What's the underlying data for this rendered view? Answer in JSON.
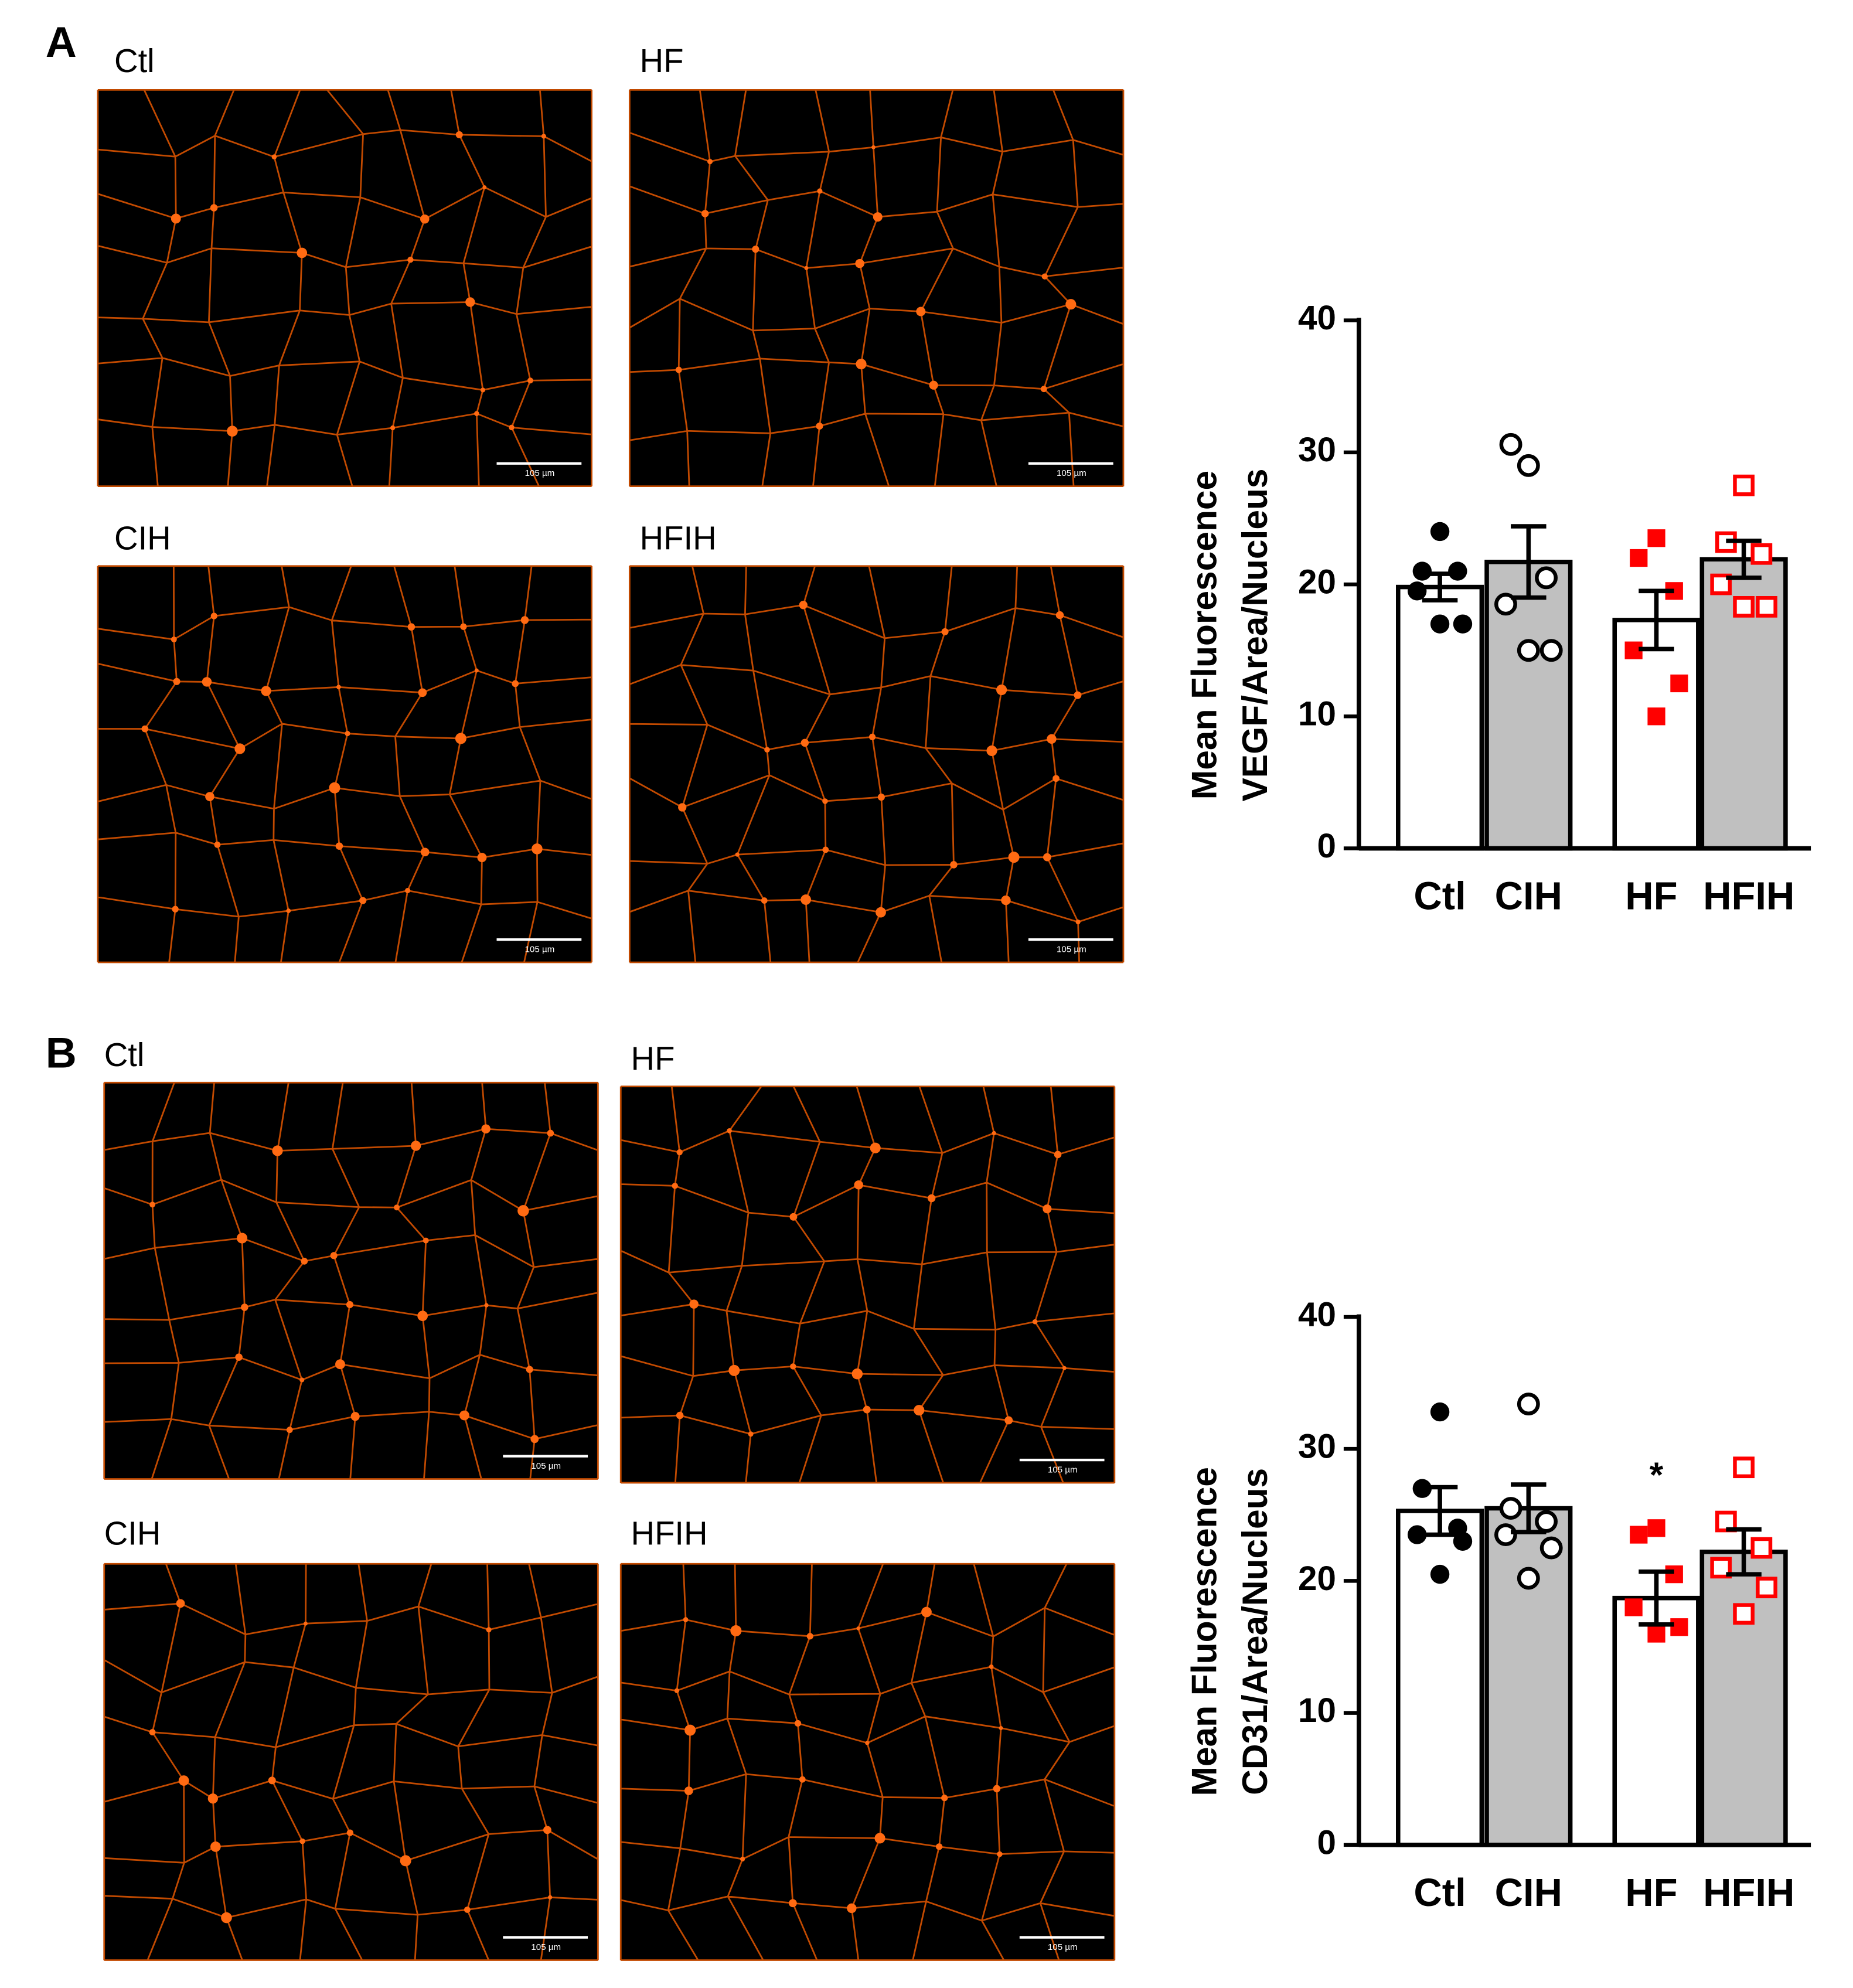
{
  "panels": [
    {
      "label": "A",
      "images": [
        {
          "label": "Ctl",
          "scale_bar": "105 µm"
        },
        {
          "label": "HF",
          "scale_bar": "105 µm"
        },
        {
          "label": "CIH",
          "scale_bar": "105 µm"
        },
        {
          "label": "HFIH",
          "scale_bar": "105 µm"
        }
      ]
    },
    {
      "label": "B",
      "images": [
        {
          "label": "Ctl",
          "scale_bar": "105 µm"
        },
        {
          "label": "HF",
          "scale_bar": "105 µm"
        },
        {
          "label": "CIH",
          "scale_bar": "105 µm"
        },
        {
          "label": "HFIH",
          "scale_bar": "105 µm"
        }
      ]
    }
  ],
  "chart_data": [
    {
      "type": "bar",
      "ylabel": [
        "Mean Fluorescence",
        "VEGF/Area/Nucleus"
      ],
      "categories": [
        "Ctl",
        "CIH",
        "HF",
        "HFIH"
      ],
      "values": [
        19.8,
        21.7,
        17.3,
        21.9
      ],
      "errors": [
        1.0,
        2.7,
        2.2,
        1.4
      ],
      "points": [
        [
          24,
          21,
          21,
          19.5,
          17,
          17
        ],
        [
          29,
          30.6,
          20.5,
          18.5,
          15,
          15
        ],
        [
          23.5,
          22,
          19.5,
          15,
          12.5,
          10
        ],
        [
          27.5,
          23.2,
          22.3,
          20,
          18.3,
          18.3
        ]
      ],
      "bar_colors": [
        "#ffffff",
        "#c0c0c0",
        "#ffffff",
        "#c0c0c0"
      ],
      "point_colors": [
        "#000000",
        "#000000",
        "#ff0000",
        "#ff0000"
      ],
      "point_markers": [
        "circle",
        "circle",
        "square",
        "square"
      ],
      "point_filled": [
        true,
        false,
        true,
        false
      ],
      "ylim": [
        0,
        40
      ],
      "yticks": [
        0,
        10,
        20,
        30,
        40
      ],
      "annotations": []
    },
    {
      "type": "bar",
      "ylabel": [
        "Mean Fluorescence",
        "CD31/Area/Nucleus"
      ],
      "categories": [
        "Ctl",
        "CIH",
        "HF",
        "HFIH"
      ],
      "values": [
        25.3,
        25.5,
        18.7,
        22.2
      ],
      "errors": [
        1.8,
        1.8,
        2.0,
        1.7
      ],
      "points": [
        [
          32.8,
          27,
          24,
          23.5,
          23,
          20.5
        ],
        [
          33.4,
          25.5,
          24.5,
          23.5,
          22.5,
          20.2
        ],
        [
          24,
          23.5,
          20.5,
          18,
          16.5,
          16
        ],
        [
          28.6,
          24.5,
          22.5,
          21,
          19.5,
          17.5
        ]
      ],
      "bar_colors": [
        "#ffffff",
        "#c0c0c0",
        "#ffffff",
        "#c0c0c0"
      ],
      "point_colors": [
        "#000000",
        "#000000",
        "#ff0000",
        "#ff0000"
      ],
      "point_markers": [
        "circle",
        "circle",
        "square",
        "square"
      ],
      "point_filled": [
        true,
        false,
        true,
        false
      ],
      "ylim": [
        0,
        40
      ],
      "yticks": [
        0,
        10,
        20,
        30,
        40
      ],
      "annotations": [
        {
          "text": "*",
          "category": "HF"
        }
      ]
    }
  ]
}
